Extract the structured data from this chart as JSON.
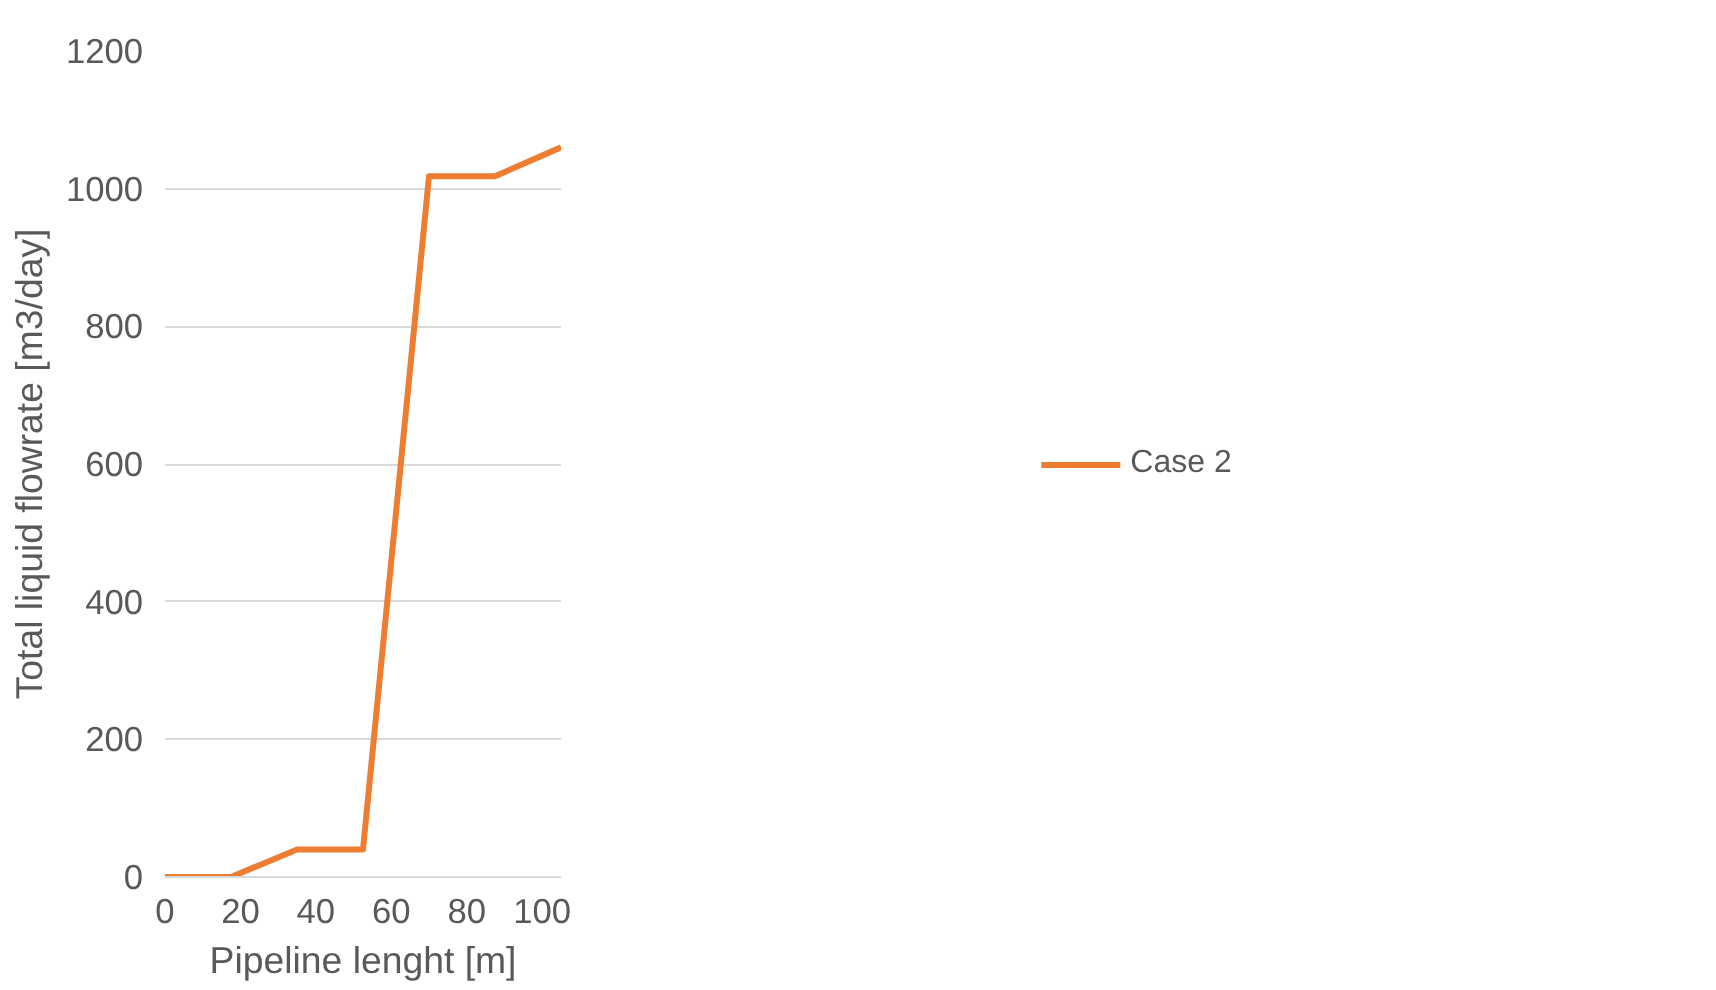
{
  "chart_data": {
    "type": "line",
    "xlabel": "Pipeline lenght [m]",
    "ylabel": "Total liquid flowrate [m3/day]",
    "x": [
      0,
      17.5,
      35,
      52.5,
      70,
      87.5,
      105
    ],
    "series": [
      {
        "name": "Case 2",
        "color": "#ed7d31",
        "values": [
          0,
          0,
          40,
          40,
          1018,
          1018,
          1060
        ]
      }
    ],
    "xlim": [
      0,
      105
    ],
    "xticks": [
      0,
      20,
      40,
      60,
      80,
      100
    ],
    "ylim": [
      0,
      1200
    ],
    "yticks": [
      0,
      200,
      400,
      600,
      800,
      1000,
      1200
    ],
    "grid": "y",
    "legend": "right",
    "marker": "none",
    "line_style": "solid"
  }
}
